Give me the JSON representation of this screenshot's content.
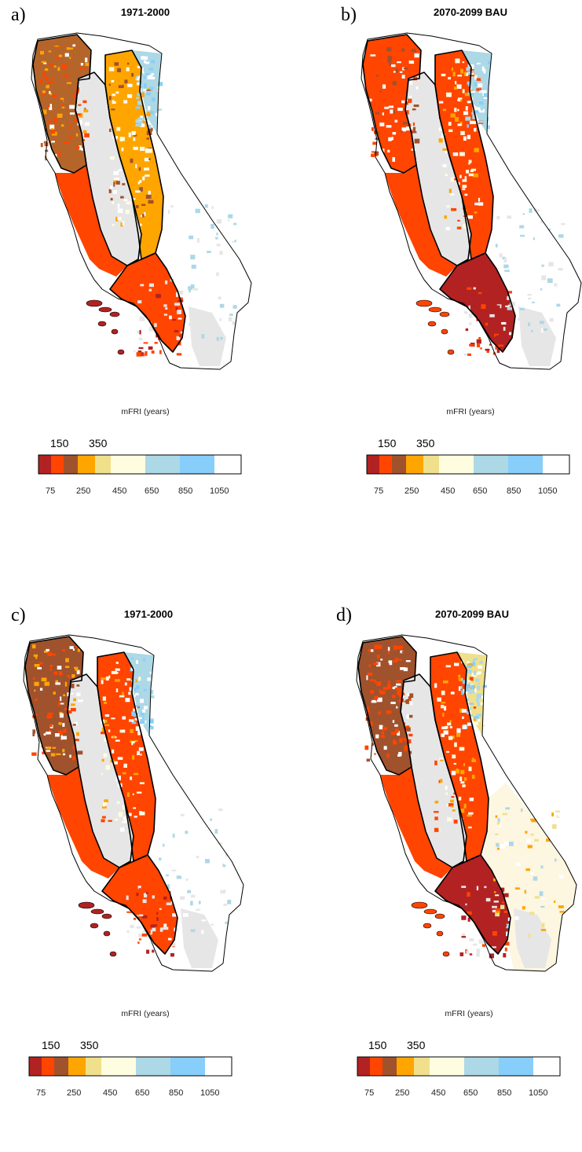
{
  "panels": [
    {
      "letter": "a)",
      "title": "1971-2000",
      "variant": 0
    },
    {
      "letter": "b)",
      "title": "2070-2099 BAU",
      "variant": 1
    },
    {
      "letter": "c)",
      "title": "1971-2000",
      "variant": 2
    },
    {
      "letter": "d)",
      "title": "2070-2099 BAU",
      "variant": 3
    }
  ],
  "legend": {
    "title": "mFRI (years)",
    "top_labels": [
      "150",
      "350"
    ],
    "bottom_labels": [
      "75",
      "250",
      "450",
      "650",
      "850",
      "1050"
    ],
    "colors": [
      "#b22222",
      "#ff4500",
      "#a0522d",
      "#ffa500",
      "#f0e08c",
      "#fffde0",
      "#add8e6",
      "#87cefa",
      "#ffffff"
    ]
  }
}
